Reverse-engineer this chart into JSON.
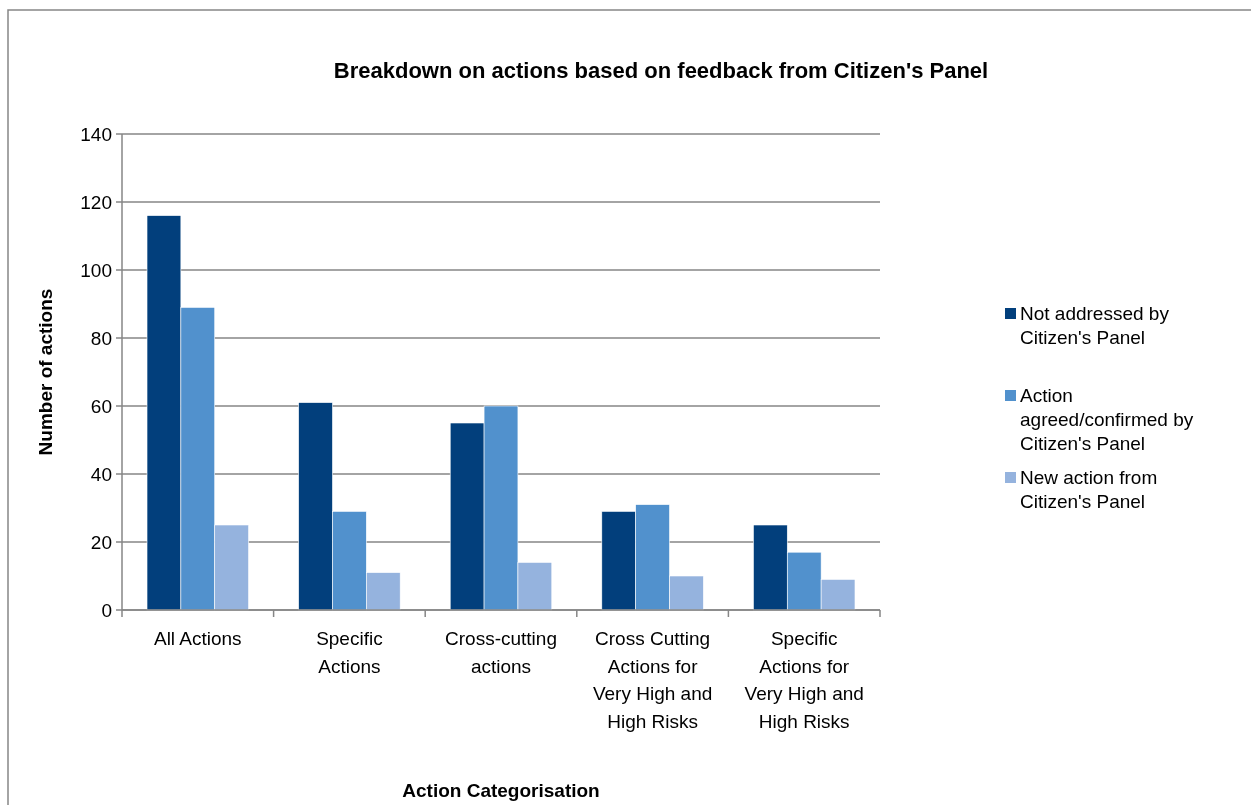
{
  "chart_data": {
    "type": "bar",
    "title": "Breakdown on actions based on feedback from Citizen's Panel",
    "xlabel": "Action Categorisation",
    "ylabel": "Number of actions",
    "categories": [
      "All Actions",
      "Specific Actions",
      "Cross-cutting actions",
      "Cross Cutting Actions for Very High and High Risks",
      "Specific Actions for Very High and High Risks"
    ],
    "series": [
      {
        "name": "Not addressed by Citizen's Panel",
        "color": "#023f7c",
        "values": [
          116,
          61,
          55,
          29,
          25
        ]
      },
      {
        "name": "Action agreed/confirmed by Citizen's Panel",
        "color": "#5191cd",
        "values": [
          89,
          29,
          60,
          31,
          17
        ]
      },
      {
        "name": "New action from Citizen's Panel",
        "color": "#95b3de",
        "values": [
          25,
          11,
          14,
          10,
          9
        ]
      }
    ],
    "ylim": [
      0,
      140
    ],
    "yticks": [
      0,
      20,
      40,
      60,
      80,
      100,
      120,
      140
    ],
    "grid": "y",
    "legend": "right"
  }
}
